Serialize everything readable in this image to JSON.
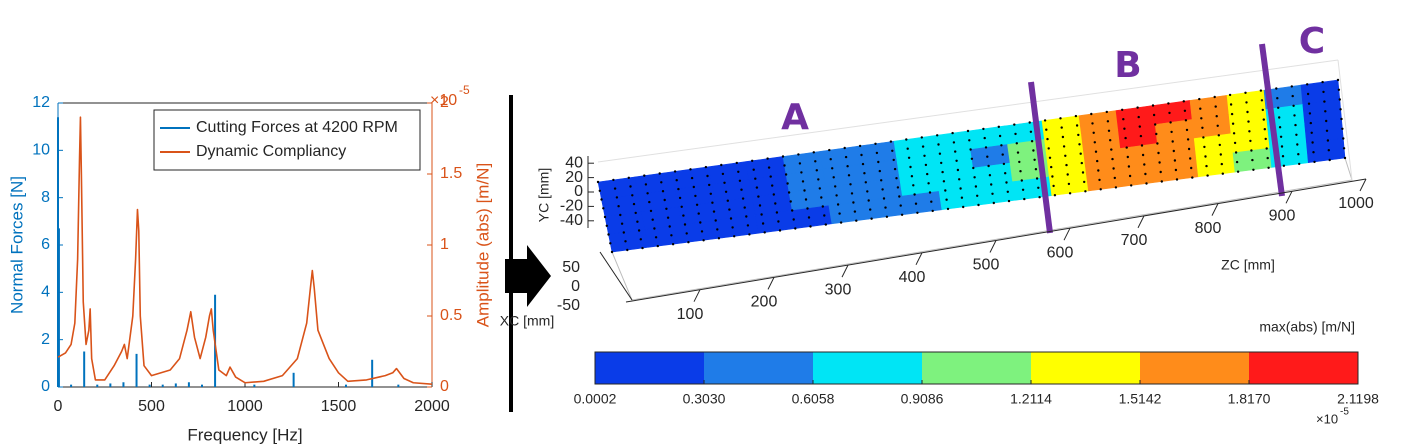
{
  "chart_data": [
    {
      "type": "line",
      "xlabel": "Frequency [Hz]",
      "ylabel": "Normal Forces [N]",
      "y2label": "Amplitude (abs) [m/N]",
      "y2_multiplier": {
        "base": "×10",
        "exponent": "-5"
      },
      "xlim": [
        0,
        2000
      ],
      "xticks": [
        0,
        500,
        1000,
        1500,
        2000
      ],
      "ylim": [
        0,
        12
      ],
      "yticks": [
        0,
        2,
        4,
        6,
        8,
        10,
        12
      ],
      "y2lim": [
        0,
        2
      ],
      "y2ticks": [
        0,
        0.5,
        1,
        1.5,
        2
      ],
      "legend_position": "upper right",
      "series": [
        {
          "name": "Cutting Forces at 4200 RPM",
          "color": "#0072BD",
          "style": "stem",
          "x": [
            0,
            5,
            70,
            140,
            210,
            280,
            350,
            420,
            490,
            560,
            630,
            700,
            770,
            840,
            1050,
            1260,
            1540,
            1680,
            1820
          ],
          "values": [
            11.4,
            6.7,
            0.1,
            1.5,
            0.1,
            0.15,
            0.2,
            1.4,
            0.1,
            0.1,
            0.15,
            0.2,
            0.1,
            3.9,
            0.1,
            0.6,
            0.1,
            1.15,
            0.1
          ]
        },
        {
          "name": "Dynamic Compliancy",
          "color": "#D95319",
          "axis": "y2",
          "x": [
            0,
            40,
            70,
            90,
            105,
            115,
            120,
            125,
            135,
            150,
            165,
            172,
            180,
            200,
            250,
            300,
            340,
            355,
            370,
            385,
            400,
            415,
            425,
            432,
            440,
            460,
            500,
            600,
            650,
            690,
            710,
            730,
            760,
            790,
            810,
            820,
            830,
            860,
            900,
            920,
            950,
            1000,
            1100,
            1200,
            1280,
            1330,
            1350,
            1360,
            1370,
            1390,
            1420,
            1450,
            1500,
            1550,
            1650,
            1750,
            1790,
            1810,
            1850,
            1900,
            2000
          ],
          "values": [
            0.21,
            0.24,
            0.3,
            0.45,
            0.9,
            1.6,
            1.9,
            1.5,
            0.6,
            0.3,
            0.4,
            0.55,
            0.2,
            0.05,
            0.05,
            0.15,
            0.25,
            0.3,
            0.2,
            0.35,
            0.5,
            0.9,
            1.25,
            1.1,
            0.5,
            0.15,
            0.08,
            0.12,
            0.2,
            0.4,
            0.53,
            0.35,
            0.2,
            0.35,
            0.5,
            0.55,
            0.4,
            0.12,
            0.08,
            0.14,
            0.07,
            0.03,
            0.04,
            0.08,
            0.2,
            0.45,
            0.7,
            0.82,
            0.7,
            0.4,
            0.3,
            0.2,
            0.1,
            0.04,
            0.05,
            0.08,
            0.1,
            0.13,
            0.06,
            0.03,
            0.02
          ]
        }
      ]
    },
    {
      "type": "surface",
      "regions": [
        "A",
        "B",
        "C"
      ],
      "xlabel": "ZC [mm]",
      "ylabel": "XC [mm]",
      "zlabel": "YC [mm]",
      "xlim": [
        0,
        1000
      ],
      "xticks": [
        100,
        200,
        300,
        400,
        500,
        600,
        700,
        800,
        900,
        1000
      ],
      "ylim": [
        -60,
        60
      ],
      "yticks": [
        50,
        0,
        -50
      ],
      "zlim": [
        -50,
        50
      ],
      "zticks": [
        40,
        20,
        0,
        -20,
        -40
      ],
      "values": [
        [
          0.2,
          0.2,
          0.2,
          0.25,
          0.3,
          0.35,
          0.4,
          0.5,
          0.7,
          0.8,
          0.8,
          0.9,
          1.3,
          1.7,
          2.0,
          2.0,
          1.6,
          1.3,
          0.5,
          0.2
        ],
        [
          0.1,
          0.15,
          0.2,
          0.2,
          0.3,
          0.4,
          0.35,
          0.5,
          0.7,
          0.75,
          0.5,
          0.95,
          1.3,
          1.7,
          1.9,
          1.8,
          1.6,
          1.3,
          0.7,
          0.3
        ],
        [
          0.1,
          0.1,
          0.15,
          0.2,
          0.25,
          0.35,
          0.35,
          0.4,
          0.65,
          0.75,
          0.7,
          1.0,
          1.3,
          1.6,
          1.7,
          1.7,
          1.5,
          1.3,
          0.8,
          0.3
        ],
        [
          0.1,
          0.1,
          0.1,
          0.15,
          0.2,
          0.3,
          0.35,
          0.4,
          0.5,
          0.7,
          0.7,
          0.9,
          1.25,
          1.55,
          1.7,
          1.7,
          1.5,
          1.2,
          0.8,
          0.3
        ]
      ],
      "colorbar": {
        "label": "max(abs) [m/N]",
        "multiplier": {
          "base": "×10",
          "exponent": "-5"
        },
        "clim": [
          0.0002,
          2.1198
        ],
        "ticks": [
          0.0002,
          {
            "value": 0.303,
            "label": "0.3030"
          },
          0.6058,
          0.9086,
          1.2114,
          1.5142,
          {
            "value": 1.817,
            "label": "1.8170"
          },
          2.1198
        ],
        "colors": [
          "#0a3ce8",
          "#1f7ce8",
          "#00e5f5",
          "#7ef27e",
          "#ffff00",
          "#ff8c1a",
          "#ff1a1a"
        ]
      }
    }
  ]
}
